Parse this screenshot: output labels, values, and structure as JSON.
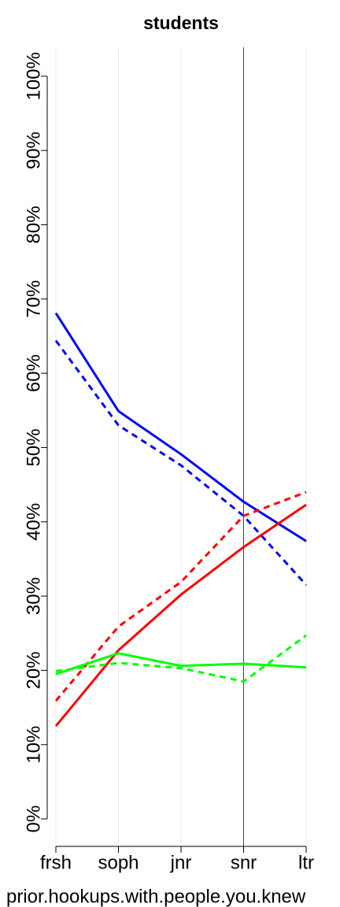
{
  "chart_data": {
    "type": "line",
    "title": "students",
    "x_label": "prior.hookups.with.people.you.knew",
    "categories": [
      "frsh",
      "soph",
      "jnr",
      "snr",
      "ltr"
    ],
    "series": [
      {
        "color": "#0000ff",
        "dashed": false,
        "values": [
          68.1,
          54.9,
          49.1,
          42.7,
          37.4
        ]
      },
      {
        "color": "#0000ff",
        "dashed": true,
        "values": [
          64.4,
          53.0,
          47.6,
          40.8,
          31.5
        ]
      },
      {
        "color": "#ff0000",
        "dashed": false,
        "values": [
          12.5,
          22.7,
          30.2,
          36.6,
          42.3
        ]
      },
      {
        "color": "#ff0000",
        "dashed": true,
        "values": [
          15.9,
          25.9,
          31.9,
          40.8,
          44.0
        ]
      },
      {
        "color": "#00ff00",
        "dashed": false,
        "values": [
          19.5,
          22.3,
          20.6,
          20.9,
          20.4
        ]
      },
      {
        "color": "#00ff00",
        "dashed": true,
        "values": [
          19.9,
          21.0,
          20.3,
          18.5,
          24.7
        ]
      }
    ],
    "ylim": [
      -3.7,
      103.9
    ],
    "yticks": [
      {
        "value": 0,
        "label": "0%"
      },
      {
        "value": 10,
        "label": "10%"
      },
      {
        "value": 20,
        "label": "20%"
      },
      {
        "value": 30,
        "label": "30%"
      },
      {
        "value": 40,
        "label": "40%"
      },
      {
        "value": 50,
        "label": "50%"
      },
      {
        "value": 60,
        "label": "60%"
      },
      {
        "value": 70,
        "label": "70%"
      },
      {
        "value": 80,
        "label": "80%"
      },
      {
        "value": 90,
        "label": "90%"
      },
      {
        "value": 100,
        "label": "100%"
      }
    ],
    "vgrid": true,
    "vline": "snr"
  }
}
